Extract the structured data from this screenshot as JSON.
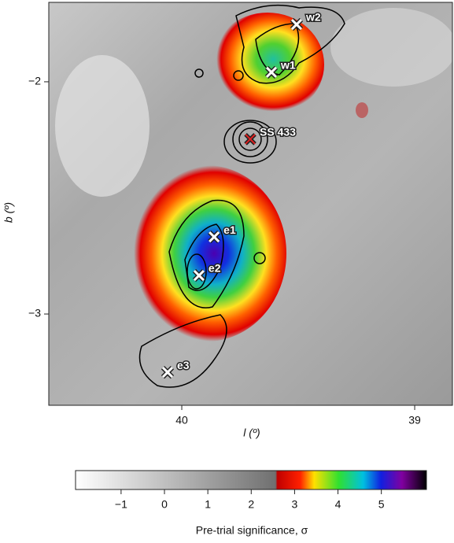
{
  "chart_data": {
    "type": "map",
    "xlabel": "l (º)",
    "ylabel": "b (º)",
    "xlim": [
      40.571,
      38.838
    ],
    "xticks": [
      40,
      39
    ],
    "ylim": [
      -3.393,
      -1.658
    ],
    "yticks": [
      {
        "value": -2,
        "label": "−2"
      },
      {
        "value": -3,
        "label": "−3"
      }
    ],
    "points": [
      {
        "label": "w2",
        "l": 39.507,
        "b": -1.753,
        "color": "#ffffff"
      },
      {
        "label": "w1",
        "l": 39.615,
        "b": -1.959,
        "color": "#ffffff"
      },
      {
        "label": "SS 433",
        "l": 39.706,
        "b": -2.247,
        "color": "#e02020"
      },
      {
        "label": "e1",
        "l": 39.861,
        "b": -2.668,
        "color": "#ffffff"
      },
      {
        "label": "e2",
        "l": 39.926,
        "b": -2.834,
        "color": "#ffffff"
      },
      {
        "label": "e3",
        "l": 40.061,
        "b": -3.251,
        "color": "#ffffff"
      }
    ],
    "colorbar": {
      "label": "Pre-trial significance, σ",
      "lim": [
        -2.05,
        6.04
      ],
      "ticks": [
        {
          "value": -1,
          "label": "−1"
        },
        0,
        1,
        2,
        3,
        4,
        5
      ]
    }
  }
}
